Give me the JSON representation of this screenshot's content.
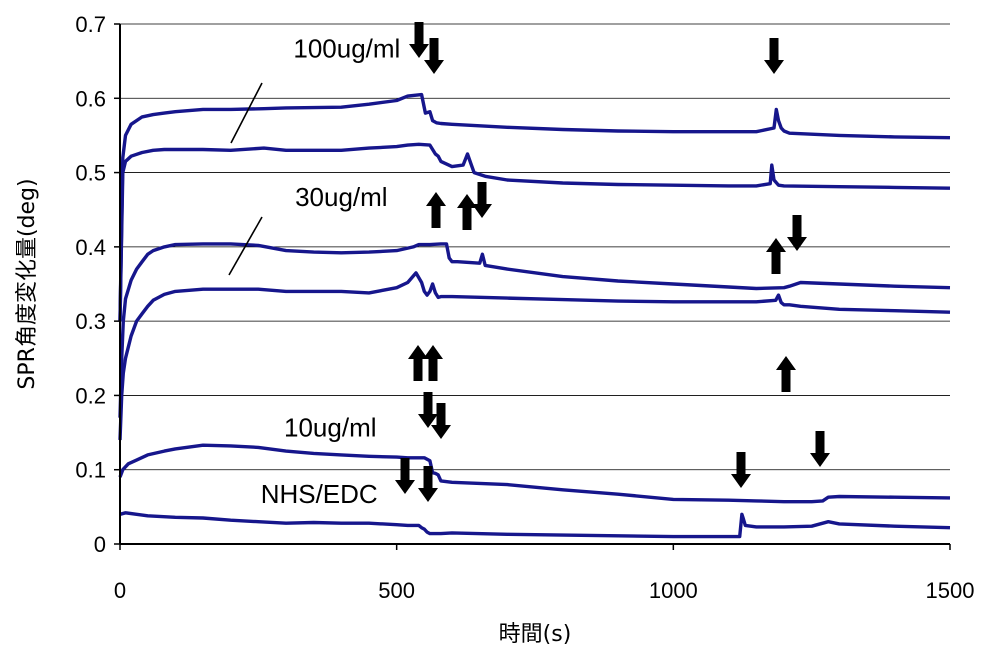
{
  "chart_data": {
    "type": "line",
    "title": "",
    "xlabel": "時間(s)",
    "ylabel": "SPR角度変化量(deg)",
    "xlim": [
      0,
      1500
    ],
    "ylim": [
      0,
      0.7
    ],
    "xticks": [
      0,
      500,
      1000,
      1500
    ],
    "yticks": [
      0,
      0.1,
      0.2,
      0.3,
      0.4,
      0.5,
      0.6,
      0.7
    ],
    "ytick_labels": [
      "0",
      "0.1",
      "0.2",
      "0.3",
      "0.4",
      "0.5",
      "0.6",
      "0.7"
    ],
    "grid": "horizontal",
    "series_color": "#16168c",
    "series": [
      {
        "x": [
          0,
          5,
          10,
          20,
          40,
          60,
          80,
          100,
          150,
          200,
          260,
          300,
          400,
          450,
          500,
          520,
          545,
          552,
          560,
          565,
          572,
          580,
          600,
          700,
          800,
          900,
          1000,
          1100,
          1150,
          1182,
          1186,
          1190,
          1195,
          1200,
          1210,
          1300,
          1400,
          1500
        ],
        "y": [
          0.3,
          0.52,
          0.55,
          0.565,
          0.575,
          0.578,
          0.58,
          0.582,
          0.585,
          0.585,
          0.586,
          0.587,
          0.588,
          0.592,
          0.597,
          0.603,
          0.605,
          0.58,
          0.582,
          0.57,
          0.567,
          0.566,
          0.565,
          0.561,
          0.558,
          0.556,
          0.555,
          0.555,
          0.555,
          0.56,
          0.585,
          0.57,
          0.56,
          0.556,
          0.553,
          0.55,
          0.548,
          0.547
        ]
      },
      {
        "x": [
          0,
          5,
          10,
          20,
          40,
          60,
          80,
          100,
          150,
          200,
          260,
          300,
          400,
          450,
          500,
          520,
          540,
          560,
          570,
          575,
          580,
          600,
          620,
          628,
          635,
          640,
          660,
          700,
          800,
          900,
          1000,
          1100,
          1150,
          1175,
          1178,
          1182,
          1190,
          1200,
          1300,
          1400,
          1500
        ],
        "y": [
          0.3,
          0.5,
          0.515,
          0.522,
          0.527,
          0.53,
          0.531,
          0.531,
          0.531,
          0.53,
          0.533,
          0.53,
          0.53,
          0.533,
          0.535,
          0.537,
          0.538,
          0.537,
          0.525,
          0.522,
          0.515,
          0.508,
          0.51,
          0.525,
          0.51,
          0.5,
          0.495,
          0.49,
          0.486,
          0.484,
          0.483,
          0.482,
          0.482,
          0.485,
          0.51,
          0.49,
          0.483,
          0.482,
          0.481,
          0.48,
          0.479
        ]
      },
      {
        "x": [
          0,
          3,
          6,
          10,
          20,
          30,
          40,
          50,
          60,
          80,
          100,
          150,
          200,
          250,
          300,
          350,
          400,
          450,
          500,
          530,
          540,
          560,
          580,
          590,
          595,
          600,
          610,
          650,
          655,
          660,
          700,
          800,
          900,
          1000,
          1100,
          1150,
          1200,
          1210,
          1230,
          1300,
          1400,
          1500
        ],
        "y": [
          0.17,
          0.25,
          0.3,
          0.33,
          0.355,
          0.37,
          0.38,
          0.39,
          0.395,
          0.4,
          0.403,
          0.404,
          0.404,
          0.402,
          0.395,
          0.393,
          0.392,
          0.393,
          0.395,
          0.4,
          0.403,
          0.403,
          0.404,
          0.404,
          0.385,
          0.38,
          0.38,
          0.378,
          0.39,
          0.375,
          0.37,
          0.36,
          0.354,
          0.35,
          0.346,
          0.344,
          0.345,
          0.347,
          0.352,
          0.35,
          0.347,
          0.345
        ]
      },
      {
        "x": [
          0,
          3,
          6,
          10,
          20,
          30,
          40,
          50,
          60,
          80,
          100,
          150,
          200,
          250,
          300,
          400,
          450,
          500,
          520,
          535,
          545,
          550,
          555,
          560,
          565,
          570,
          575,
          580,
          600,
          700,
          800,
          900,
          1000,
          1100,
          1150,
          1185,
          1190,
          1195,
          1200,
          1210,
          1230,
          1300,
          1400,
          1500
        ],
        "y": [
          0.14,
          0.2,
          0.23,
          0.25,
          0.28,
          0.3,
          0.31,
          0.32,
          0.328,
          0.336,
          0.34,
          0.343,
          0.343,
          0.343,
          0.34,
          0.34,
          0.338,
          0.345,
          0.352,
          0.365,
          0.352,
          0.34,
          0.335,
          0.34,
          0.35,
          0.338,
          0.332,
          0.333,
          0.333,
          0.331,
          0.329,
          0.327,
          0.326,
          0.326,
          0.326,
          0.328,
          0.335,
          0.325,
          0.322,
          0.322,
          0.32,
          0.316,
          0.314,
          0.312
        ]
      },
      {
        "x": [
          0,
          5,
          15,
          30,
          50,
          80,
          100,
          150,
          200,
          250,
          300,
          350,
          400,
          450,
          500,
          520,
          550,
          560,
          565,
          570,
          575,
          580,
          600,
          700,
          800,
          900,
          1000,
          1100,
          1150,
          1200,
          1250,
          1270,
          1280,
          1300,
          1400,
          1500
        ],
        "y": [
          0.09,
          0.1,
          0.108,
          0.113,
          0.12,
          0.125,
          0.128,
          0.133,
          0.132,
          0.13,
          0.125,
          0.122,
          0.12,
          0.118,
          0.117,
          0.116,
          0.116,
          0.112,
          0.096,
          0.095,
          0.093,
          0.085,
          0.083,
          0.08,
          0.073,
          0.067,
          0.06,
          0.059,
          0.058,
          0.057,
          0.057,
          0.058,
          0.063,
          0.064,
          0.063,
          0.062
        ]
      },
      {
        "x": [
          0,
          10,
          30,
          50,
          100,
          150,
          200,
          250,
          300,
          350,
          400,
          450,
          500,
          520,
          540,
          545,
          550,
          555,
          560,
          580,
          600,
          700,
          800,
          900,
          1000,
          1100,
          1120,
          1124,
          1126,
          1130,
          1150,
          1200,
          1250,
          1280,
          1300,
          1400,
          1500
        ],
        "y": [
          0.04,
          0.042,
          0.04,
          0.038,
          0.036,
          0.035,
          0.032,
          0.03,
          0.028,
          0.029,
          0.028,
          0.028,
          0.026,
          0.025,
          0.025,
          0.022,
          0.02,
          0.016,
          0.014,
          0.014,
          0.015,
          0.013,
          0.012,
          0.011,
          0.01,
          0.01,
          0.01,
          0.04,
          0.035,
          0.025,
          0.023,
          0.023,
          0.024,
          0.03,
          0.027,
          0.024,
          0.022
        ]
      }
    ],
    "annotations": [
      {
        "text": "100ug/ml",
        "x": 410,
        "y": 0.655
      },
      {
        "text": "30ug/ml",
        "x": 400,
        "y": 0.455
      },
      {
        "text": "10ug/ml",
        "x": 380,
        "y": 0.145
      },
      {
        "text": "NHS/EDC",
        "x": 360,
        "y": 0.055
      }
    ]
  }
}
